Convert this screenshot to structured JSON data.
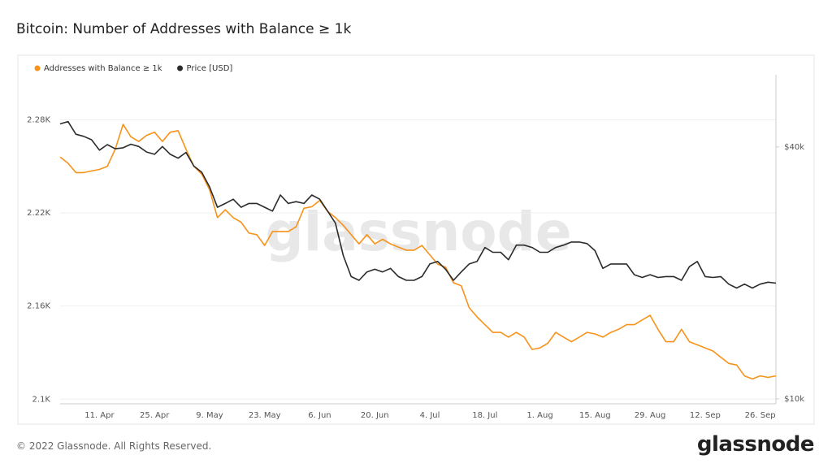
{
  "header": {
    "title": "Bitcoin: Number of Addresses with Balance ≥ 1k"
  },
  "chart_data": {
    "type": "line",
    "watermark": "glassnode",
    "categories": [
      null,
      null,
      null,
      null,
      null,
      "11. Apr",
      null,
      null,
      null,
      null,
      null,
      null,
      "25. Apr",
      null,
      null,
      null,
      null,
      null,
      null,
      "9. May",
      null,
      null,
      null,
      null,
      null,
      null,
      "23. May",
      null,
      null,
      null,
      null,
      null,
      null,
      "6. Jun",
      null,
      null,
      null,
      null,
      null,
      null,
      "20. Jun",
      null,
      null,
      null,
      null,
      null,
      null,
      "4. Jul",
      null,
      null,
      null,
      null,
      null,
      null,
      "18. Jul",
      null,
      null,
      null,
      null,
      null,
      null,
      "1. Aug",
      null,
      null,
      null,
      null,
      null,
      null,
      "15. Aug",
      null,
      null,
      null,
      null,
      null,
      null,
      "29. Aug",
      null,
      null,
      null,
      null,
      null,
      null,
      "12. Sep",
      null,
      null,
      null,
      null,
      null,
      null,
      "26. Sep",
      null,
      null
    ],
    "series": [
      {
        "name": "Addresses with Balance ≥ 1k",
        "color": "#f7931a",
        "values": [
          2256,
          2252,
          2246,
          2246,
          2247,
          2248,
          2250,
          2261,
          2277,
          2269,
          2266,
          2270,
          2272,
          2266,
          2272,
          2273,
          2261,
          2250,
          2245,
          2235,
          2217,
          2222,
          2217,
          2214,
          2207,
          2206,
          2199,
          2208,
          2208,
          2208,
          2211,
          2223,
          2224,
          2228,
          2221,
          2217,
          2212,
          2206,
          2200,
          2206,
          2200,
          2203,
          2200,
          2198,
          2196,
          2196,
          2199,
          2193,
          2187,
          2185,
          2175,
          2173,
          2159,
          2153,
          2148,
          2143,
          2143,
          2140,
          2143,
          2140,
          2132,
          2133,
          2136,
          2143,
          2140,
          2137,
          2140,
          2143,
          2142,
          2140,
          2143,
          2145,
          2148,
          2148,
          2151,
          2154,
          2145,
          2137,
          2137,
          2145,
          2137,
          2135,
          2133,
          2131,
          2127,
          2123,
          2122,
          2115,
          2113,
          2115,
          2114,
          2115
        ]
      },
      {
        "name": "Price [USD]",
        "color": "#2b2b2b",
        "axis": "y2",
        "values": [
          45400,
          46000,
          42900,
          42400,
          41600,
          39300,
          40500,
          39600,
          39800,
          40600,
          40100,
          38900,
          38400,
          40100,
          38400,
          37600,
          38800,
          36000,
          34800,
          32100,
          28700,
          29300,
          30000,
          28700,
          29300,
          29300,
          28700,
          28100,
          30700,
          29300,
          29600,
          29300,
          30700,
          30000,
          28100,
          26300,
          22000,
          19600,
          19200,
          20100,
          20400,
          20100,
          20500,
          19600,
          19200,
          19200,
          19600,
          21000,
          21300,
          20400,
          19200,
          20100,
          21000,
          21300,
          23000,
          22400,
          22400,
          21500,
          23300,
          23300,
          23000,
          22400,
          22400,
          23000,
          23300,
          23700,
          23700,
          23500,
          22600,
          20500,
          21000,
          21000,
          21000,
          19800,
          19500,
          19800,
          19500,
          19600,
          19600,
          19200,
          20700,
          21300,
          19600,
          19500,
          19600,
          18800,
          18400,
          18800,
          18400,
          18800,
          19000,
          18900
        ]
      }
    ],
    "ylim": [
      2097,
      2309
    ],
    "yticks": [
      {
        "value": 2100,
        "label": "2.1K"
      },
      {
        "value": 2160,
        "label": "2.16K"
      },
      {
        "value": 2220,
        "label": "2.22K"
      },
      {
        "value": 2280,
        "label": "2.28K"
      }
    ],
    "y2lim": [
      9730,
      59500
    ],
    "y2scale": "log",
    "y2ticks": [
      {
        "value": 10000,
        "label": "$10k"
      },
      {
        "value": 40000,
        "label": "$40k"
      }
    ],
    "grid": true,
    "legend": "top-left"
  },
  "footer": {
    "copyright": "© 2022 Glassnode. All Rights Reserved.",
    "logo": "glassnode"
  }
}
